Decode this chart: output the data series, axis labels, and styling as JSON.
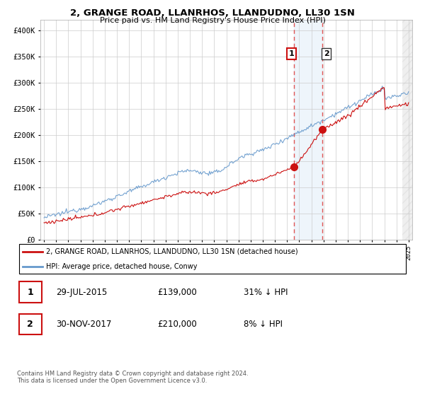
{
  "title": "2, GRANGE ROAD, LLANRHOS, LLANDUDNO, LL30 1SN",
  "subtitle": "Price paid vs. HM Land Registry's House Price Index (HPI)",
  "ylim": [
    0,
    420000
  ],
  "yticks": [
    0,
    50000,
    100000,
    150000,
    200000,
    250000,
    300000,
    350000,
    400000
  ],
  "ytick_labels": [
    "£0",
    "£50K",
    "£100K",
    "£150K",
    "£200K",
    "£250K",
    "£300K",
    "£350K",
    "£400K"
  ],
  "sale1_date": 2015.58,
  "sale1_price": 139000,
  "sale1_label": "1",
  "sale2_date": 2017.92,
  "sale2_price": 210000,
  "sale2_label": "2",
  "highlight_color": "#d6e8f7",
  "dashed_color": "#e05555",
  "red_line_color": "#cc1111",
  "blue_line_color": "#6699cc",
  "legend_red_label": "2, GRANGE ROAD, LLANRHOS, LLANDUDNO, LL30 1SN (detached house)",
  "legend_blue_label": "HPI: Average price, detached house, Conwy",
  "table_rows": [
    {
      "num": "1",
      "date": "29-JUL-2015",
      "price": "£139,000",
      "hpi": "31% ↓ HPI"
    },
    {
      "num": "2",
      "date": "30-NOV-2017",
      "price": "£210,000",
      "hpi": "8% ↓ HPI"
    }
  ],
  "footer": "Contains HM Land Registry data © Crown copyright and database right 2024.\nThis data is licensed under the Open Government Licence v3.0.",
  "background_color": "#ffffff",
  "grid_color": "#cccccc",
  "xmin": 1995,
  "xmax": 2025
}
